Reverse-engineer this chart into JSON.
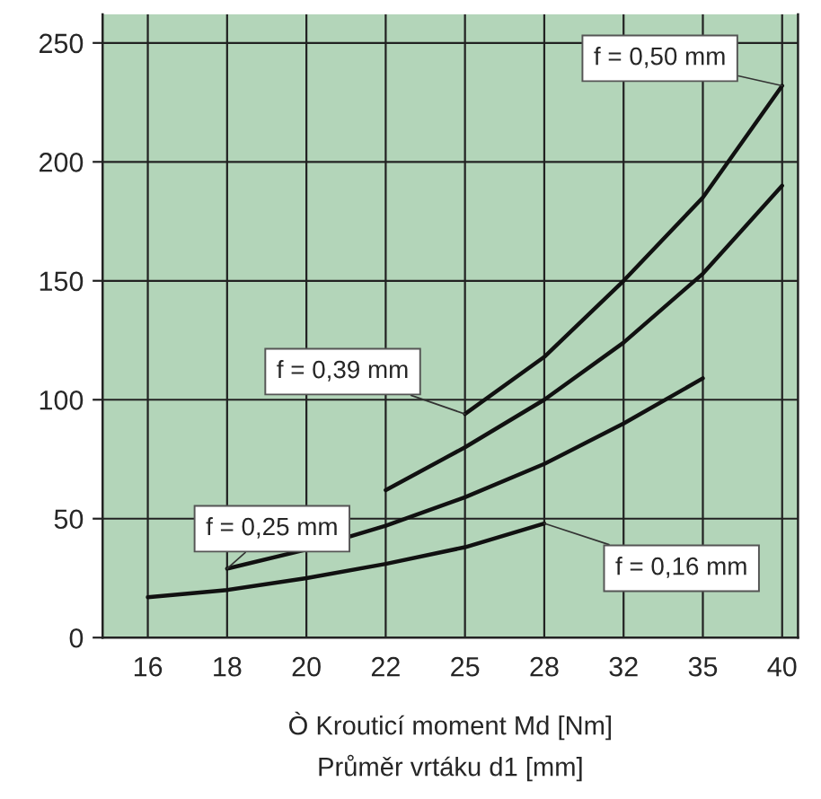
{
  "chart_data": {
    "type": "line",
    "xlabel": "Ò Krouticí moment Md [Nm]\nPrůměr vrtáku d1 [mm]",
    "categories": [
      "16",
      "18",
      "20",
      "22",
      "25",
      "28",
      "32",
      "35",
      "40"
    ],
    "series": [
      {
        "color": "#111111",
        "values": [
          17,
          20,
          25,
          31,
          38,
          48,
          null,
          null,
          null
        ]
      },
      {
        "color": "#111111",
        "values": [
          null,
          29,
          37,
          47,
          59,
          73,
          90,
          109,
          null
        ]
      },
      {
        "color": "#111111",
        "values": [
          null,
          null,
          null,
          62,
          80,
          100,
          124,
          153,
          190
        ]
      },
      {
        "color": "#111111",
        "values": [
          null,
          null,
          null,
          null,
          94,
          118,
          150,
          185,
          232
        ]
      }
    ],
    "ylim": [
      0,
      262
    ],
    "yticks": [
      0,
      50,
      100,
      150,
      200,
      250
    ],
    "grid": true,
    "marker": "none",
    "line_style": "solid",
    "annotations": [
      {
        "text": "f = 0,50 mm",
        "x": "40",
        "y": 232
      },
      {
        "text": "f = 0,39 mm",
        "x": "25",
        "y": 94
      },
      {
        "text": "f = 0,25 mm",
        "x": "18",
        "y": 29
      },
      {
        "text": "f = 0,16 mm",
        "x": "28",
        "y": 48
      }
    ]
  }
}
